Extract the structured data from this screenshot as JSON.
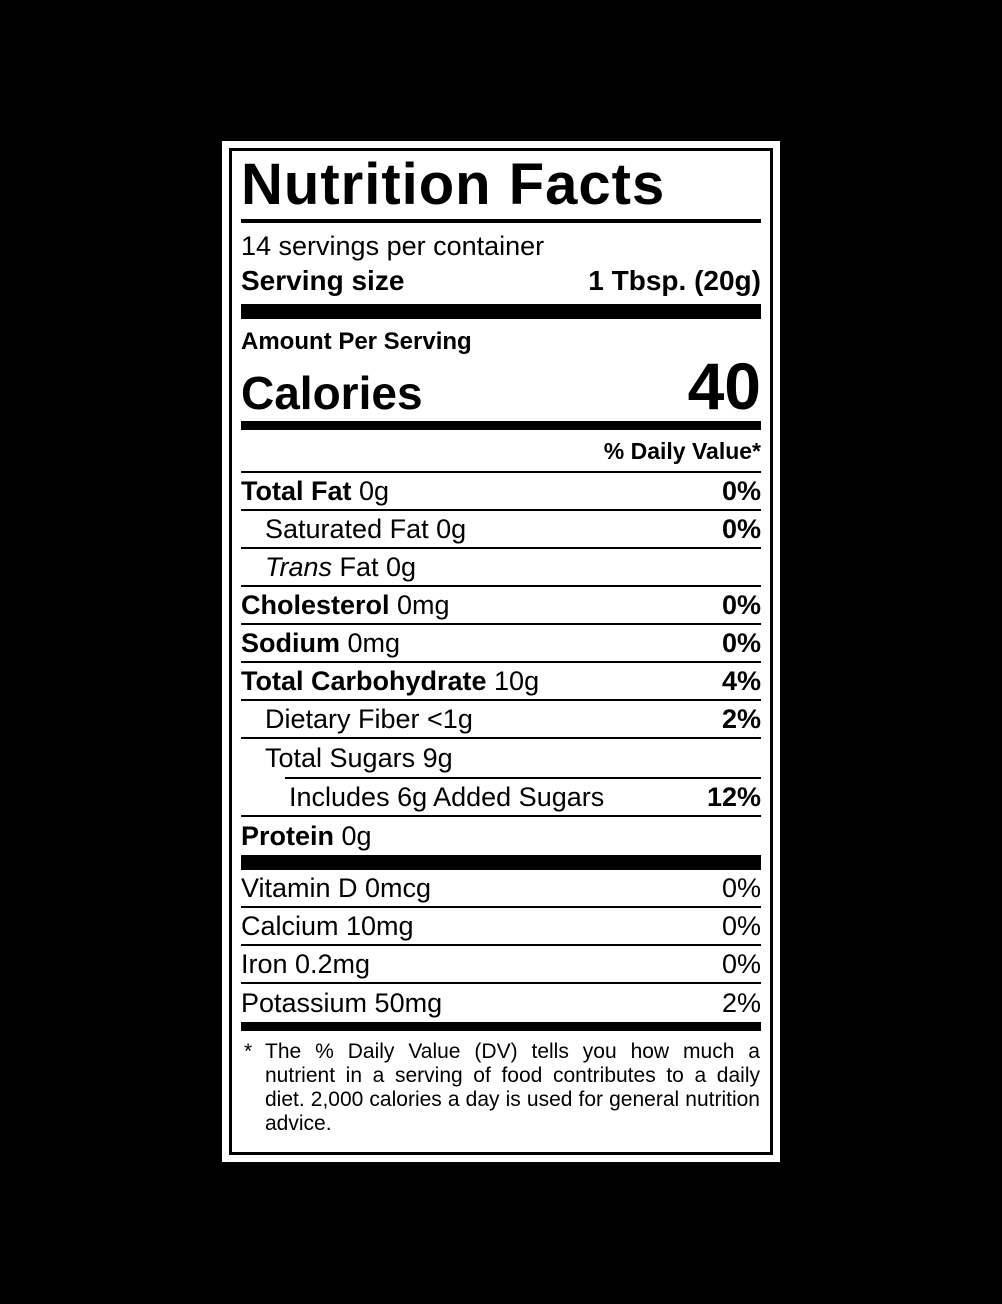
{
  "label": {
    "title": "Nutrition Facts",
    "servings_per_container": "14 servings per container",
    "serving_size_label": "Serving size",
    "serving_size_value": "1 Tbsp. (20g)",
    "amount_per_serving": "Amount Per Serving",
    "calories_label": "Calories",
    "calories_value": "40",
    "daily_value_header": "% Daily Value*",
    "nutrients": [
      {
        "bold_name": "Total Fat",
        "rest": "0g",
        "dv": "0%",
        "dv_bold": true,
        "indent": 0
      },
      {
        "rest": "Saturated Fat 0g",
        "dv": "0%",
        "dv_bold": true,
        "indent": 1
      },
      {
        "italic_name": "Trans",
        "rest": "Fat 0g",
        "dv": "",
        "indent": 1
      },
      {
        "bold_name": "Cholesterol",
        "rest": "0mg",
        "dv": "0%",
        "dv_bold": true,
        "indent": 0
      },
      {
        "bold_name": "Sodium",
        "rest": "0mg",
        "dv": "0%",
        "dv_bold": true,
        "indent": 0
      },
      {
        "bold_name": "Total Carbohydrate",
        "rest": "10g",
        "dv": "4%",
        "dv_bold": true,
        "indent": 0
      },
      {
        "rest": "Dietary Fiber <1g",
        "dv": "2%",
        "dv_bold": true,
        "indent": 1
      },
      {
        "rest": "Total Sugars 9g",
        "dv": "",
        "indent": 1,
        "no_border": true
      },
      {
        "rest": "Includes 6g Added Sugars",
        "dv": "12%",
        "dv_bold": true,
        "indent": 2,
        "partial_rule_above": true
      },
      {
        "bold_name": "Protein",
        "rest": "0g",
        "dv": "",
        "indent": 0,
        "no_border": true
      }
    ],
    "vitamins": [
      {
        "rest": "Vitamin D 0mcg",
        "dv": "0%"
      },
      {
        "rest": "Calcium 10mg",
        "dv": "0%"
      },
      {
        "rest": "Iron 0.2mg",
        "dv": "0%"
      },
      {
        "rest": "Potassium 50mg",
        "dv": "2%",
        "no_border": true
      }
    ],
    "footnote_marker": "*",
    "footnote_text": "The % Daily Value (DV) tells you how much a nutrient in a serving of food contributes to a daily diet. 2,000 calories a day is used for general nutrition advice.",
    "colors": {
      "background": "#000000",
      "label_bg": "#ffffff",
      "text": "#000000"
    }
  }
}
